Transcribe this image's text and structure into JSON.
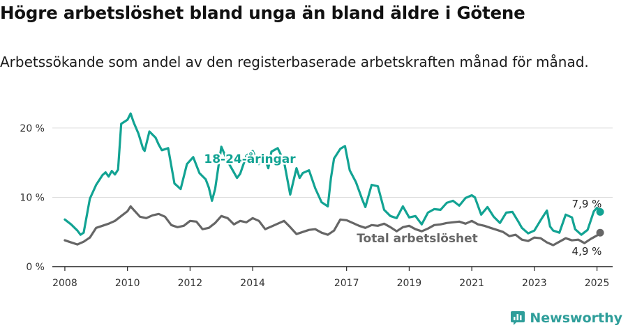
{
  "title": "Högre arbetslöshet bland unga än bland äldre i Götene",
  "subtitle": "Arbetssökande som andel av den registerbaserade arbetskraften månad för månad.",
  "brand": "Newsworthy",
  "colors": {
    "youth": "#12a393",
    "total": "#666666",
    "grid": "#dddddd",
    "brand": "#2e9e9a"
  },
  "chart_data": {
    "type": "line",
    "ylim": [
      0,
      22
    ],
    "xlim": [
      2007.6,
      2025.5
    ],
    "y_ticks": [
      {
        "value": 0,
        "label": "0 %"
      },
      {
        "value": 10,
        "label": "10 %"
      },
      {
        "value": 20,
        "label": "20 %"
      }
    ],
    "x_ticks": [
      {
        "value": 2008,
        "label": "2008"
      },
      {
        "value": 2010,
        "label": "2010"
      },
      {
        "value": 2012,
        "label": "2012"
      },
      {
        "value": 2014,
        "label": "2014"
      },
      {
        "value": 2017,
        "label": "2017"
      },
      {
        "value": 2019,
        "label": "2019"
      },
      {
        "value": 2021,
        "label": "2021"
      },
      {
        "value": 2023,
        "label": "2023"
      },
      {
        "value": 2025,
        "label": "2025"
      }
    ],
    "grid": true,
    "series": [
      {
        "name": "18-24-åringar",
        "end_label": "7,9 %",
        "x": [
          2008.0,
          2008.2,
          2008.4,
          2008.5,
          2008.6,
          2008.8,
          2009.0,
          2009.2,
          2009.3,
          2009.4,
          2009.5,
          2009.6,
          2009.7,
          2009.8,
          2010.0,
          2010.1,
          2010.2,
          2010.35,
          2010.5,
          2010.55,
          2010.7,
          2010.9,
          2011.0,
          2011.1,
          2011.3,
          2011.5,
          2011.7,
          2011.9,
          2012.1,
          2012.3,
          2012.5,
          2012.6,
          2012.7,
          2012.8,
          2013.0,
          2013.2,
          2013.4,
          2013.5,
          2013.6,
          2013.8,
          2014.0,
          2014.2,
          2014.4,
          2014.5,
          2014.6,
          2014.8,
          2015.0,
          2015.2,
          2015.4,
          2015.5,
          2015.6,
          2015.8,
          2016.0,
          2016.2,
          2016.4,
          2016.5,
          2016.6,
          2016.8,
          2016.95,
          2017.1,
          2017.3,
          2017.5,
          2017.6,
          2017.8,
          2018.0,
          2018.2,
          2018.4,
          2018.6,
          2018.8,
          2019.0,
          2019.2,
          2019.4,
          2019.6,
          2019.8,
          2020.0,
          2020.2,
          2020.4,
          2020.6,
          2020.8,
          2021.0,
          2021.1,
          2021.3,
          2021.5,
          2021.7,
          2021.9,
          2022.1,
          2022.3,
          2022.5,
          2022.6,
          2022.8,
          2023.0,
          2023.2,
          2023.4,
          2023.5,
          2023.6,
          2023.8,
          2024.0,
          2024.2,
          2024.3,
          2024.5,
          2024.7,
          2024.9,
          2025.0,
          2025.1
        ],
        "y": [
          6.8,
          6.1,
          5.2,
          4.6,
          4.9,
          9.8,
          11.8,
          13.2,
          13.6,
          13.0,
          13.8,
          13.3,
          14.0,
          20.6,
          21.2,
          22.1,
          20.8,
          19.2,
          17.0,
          16.7,
          19.5,
          18.6,
          17.6,
          16.8,
          17.1,
          12.0,
          11.2,
          14.8,
          15.8,
          13.5,
          12.6,
          11.4,
          9.5,
          11.2,
          17.3,
          15.2,
          13.6,
          12.8,
          13.4,
          16.0,
          16.7,
          14.8,
          15.5,
          14.2,
          16.6,
          17.1,
          15.2,
          10.4,
          14.2,
          12.8,
          13.5,
          13.9,
          11.3,
          9.3,
          8.7,
          12.8,
          15.6,
          17.0,
          17.4,
          13.9,
          12.2,
          9.7,
          8.6,
          11.8,
          11.6,
          8.2,
          7.3,
          7.0,
          8.7,
          7.1,
          7.3,
          6.1,
          7.8,
          8.3,
          8.2,
          9.2,
          9.5,
          8.8,
          9.9,
          10.3,
          10.0,
          7.5,
          8.6,
          7.2,
          6.3,
          7.8,
          7.9,
          6.4,
          5.6,
          4.8,
          5.2,
          6.7,
          8.1,
          5.8,
          5.2,
          4.9,
          7.5,
          7.1,
          5.4,
          4.6,
          5.3,
          8.0,
          8.5,
          7.9
        ]
      },
      {
        "name": "Total arbetslöshet",
        "end_label": "4,9 %",
        "x": [
          2008.0,
          2008.2,
          2008.4,
          2008.6,
          2008.8,
          2009.0,
          2009.2,
          2009.4,
          2009.6,
          2009.8,
          2010.0,
          2010.1,
          2010.2,
          2010.4,
          2010.6,
          2010.8,
          2011.0,
          2011.2,
          2011.4,
          2011.6,
          2011.8,
          2012.0,
          2012.2,
          2012.4,
          2012.6,
          2012.8,
          2013.0,
          2013.2,
          2013.4,
          2013.6,
          2013.8,
          2014.0,
          2014.2,
          2014.4,
          2014.6,
          2014.8,
          2015.0,
          2015.2,
          2015.4,
          2015.6,
          2015.8,
          2016.0,
          2016.2,
          2016.4,
          2016.6,
          2016.8,
          2017.0,
          2017.2,
          2017.4,
          2017.6,
          2017.8,
          2018.0,
          2018.2,
          2018.4,
          2018.6,
          2018.8,
          2019.0,
          2019.2,
          2019.4,
          2019.6,
          2019.8,
          2020.0,
          2020.2,
          2020.4,
          2020.6,
          2020.8,
          2021.0,
          2021.2,
          2021.4,
          2021.6,
          2021.8,
          2022.0,
          2022.2,
          2022.4,
          2022.6,
          2022.8,
          2023.0,
          2023.2,
          2023.4,
          2023.6,
          2023.8,
          2024.0,
          2024.2,
          2024.4,
          2024.6,
          2024.8,
          2025.0,
          2025.1
        ],
        "y": [
          3.8,
          3.5,
          3.2,
          3.6,
          4.2,
          5.6,
          5.9,
          6.2,
          6.6,
          7.3,
          8.0,
          8.7,
          8.2,
          7.2,
          7.0,
          7.4,
          7.6,
          7.2,
          6.0,
          5.7,
          5.9,
          6.6,
          6.5,
          5.4,
          5.6,
          6.3,
          7.3,
          7.0,
          6.1,
          6.6,
          6.4,
          7.0,
          6.6,
          5.4,
          5.8,
          6.2,
          6.6,
          5.7,
          4.7,
          5.0,
          5.3,
          5.4,
          4.9,
          4.6,
          5.2,
          6.8,
          6.7,
          6.3,
          5.9,
          5.6,
          6.0,
          5.9,
          6.2,
          5.7,
          5.1,
          5.7,
          5.9,
          5.4,
          5.1,
          5.5,
          6.0,
          6.1,
          6.3,
          6.4,
          6.5,
          6.2,
          6.6,
          6.1,
          5.9,
          5.6,
          5.3,
          5.0,
          4.4,
          4.6,
          3.9,
          3.7,
          4.2,
          4.1,
          3.5,
          3.1,
          3.6,
          4.1,
          3.8,
          3.9,
          3.4,
          4.0,
          4.5,
          4.9
        ]
      }
    ]
  }
}
